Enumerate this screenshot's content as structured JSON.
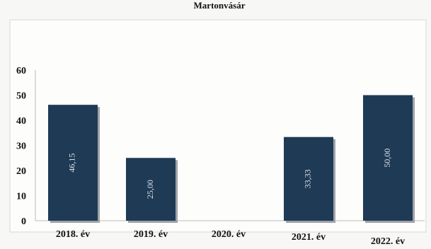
{
  "chart_data": {
    "type": "bar",
    "title": "Martonvásár",
    "categories": [
      "2018. év",
      "2019. év",
      "2020. év",
      "2021. év",
      "2022. év"
    ],
    "values": [
      46.15,
      25.0,
      null,
      33.33,
      50.0
    ],
    "data_labels": [
      "46,15",
      "25,00",
      "",
      "33,33",
      "50,00"
    ],
    "y_ticks": [
      "0",
      "10",
      "20",
      "30",
      "40",
      "50",
      "60"
    ],
    "ylim": [
      0,
      60
    ],
    "ylabel": "",
    "xlabel": "",
    "grid": false,
    "legend": "none",
    "bar_color": "#1f3a55",
    "label_color": "#dfe6ee"
  }
}
